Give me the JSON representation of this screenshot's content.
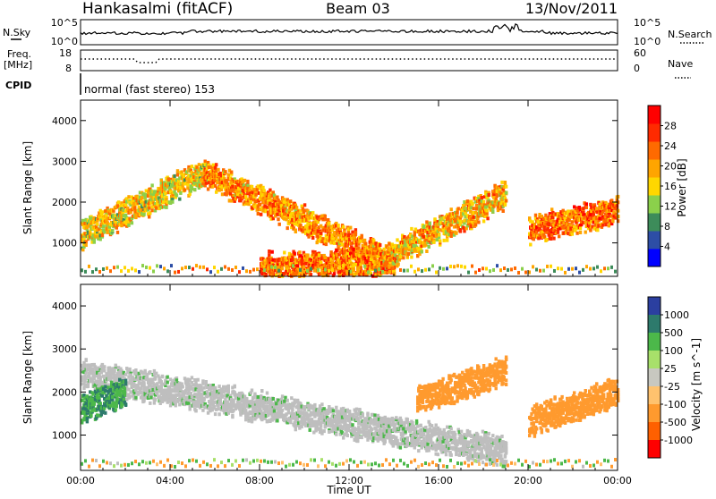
{
  "header": {
    "station": "Hankasalmi (fitACF)",
    "beam": "Beam 03",
    "date": "13/Nov/2011"
  },
  "panels": {
    "noise": {
      "left_label": "N.Sky",
      "right_label": "N.Search",
      "left_ticks": [
        "10^5",
        "10^0"
      ],
      "right_ticks": [
        "10^5",
        "10^0"
      ]
    },
    "freq": {
      "left_label_1": "Freq.",
      "left_label_2": "[MHz]",
      "left_ticks": [
        "18",
        "8"
      ],
      "right_label": "Nave",
      "right_ticks": [
        "60",
        "0"
      ]
    },
    "cpid": {
      "label": "CPID",
      "value": "normal (fast stereo) 153"
    }
  },
  "colors": {
    "power_scale": [
      "#0000ff",
      "#2d4ea6",
      "#3d8c5a",
      "#8bd04b",
      "#ffd700",
      "#ffa500",
      "#ff6a00",
      "#ff2a00",
      "#ff0000"
    ],
    "velocity_scale": [
      "#2b3fa0",
      "#2d7a6c",
      "#4cb84a",
      "#a8e06a",
      "#c8c8c0",
      "#ffc26e",
      "#ff9a2e",
      "#ff6000",
      "#ff0000"
    ],
    "ground_scatter": "#bebebe"
  },
  "chart_data": [
    {
      "type": "heatmap",
      "name": "power",
      "ylabel": "Slant Range [km]",
      "xlabel": "",
      "x_ticks": [
        "00:00",
        "04:00",
        "08:00",
        "12:00",
        "16:00",
        "20:00",
        "00:00"
      ],
      "x_range_hours": [
        0,
        24
      ],
      "y_ticks": [
        1000,
        2000,
        3000,
        4000
      ],
      "y_range_km": [
        180,
        4500
      ],
      "colorbar": {
        "label": "Power [dB]",
        "ticks": [
          4,
          8,
          12,
          16,
          20,
          24,
          28
        ],
        "range": [
          0,
          32
        ]
      },
      "features": [
        {
          "label": "evening echo band",
          "t_start_h": 0.0,
          "t_end_h": 5.5,
          "range_start_km": 1200,
          "range_end_km": 2700,
          "typical_db": 24
        },
        {
          "label": "morning descending echo arc",
          "t_start_h": 5.5,
          "t_end_h": 13.5,
          "range_start_km": 2700,
          "range_end_km": 600,
          "typical_db": 28
        },
        {
          "label": "near-range echo strip",
          "t_start_h": 8.0,
          "t_end_h": 14.0,
          "range_start_km": 400,
          "range_end_km": 500,
          "typical_db": 30
        },
        {
          "label": "afternoon ascending echo arc",
          "t_start_h": 13.5,
          "t_end_h": 19.0,
          "range_start_km": 600,
          "range_end_km": 2200,
          "typical_db": 26
        },
        {
          "label": "late evening echo band",
          "t_start_h": 20.0,
          "t_end_h": 24.0,
          "range_start_km": 1300,
          "range_end_km": 1800,
          "typical_db": 30
        }
      ]
    },
    {
      "type": "heatmap",
      "name": "velocity",
      "ylabel": "Slant Range [km]",
      "xlabel": "Time UT",
      "x_ticks": [
        "00:00",
        "04:00",
        "08:00",
        "12:00",
        "16:00",
        "20:00",
        "00:00"
      ],
      "x_range_hours": [
        0,
        24
      ],
      "y_ticks": [
        1000,
        2000,
        3000,
        4000
      ],
      "y_range_km": [
        180,
        4500
      ],
      "colorbar": {
        "label": "Velocity [m s^-1]",
        "ticks": [
          1000,
          500,
          100,
          25,
          -25,
          -100,
          -500,
          -1000
        ]
      },
      "features": [
        {
          "label": "ground scatter arc",
          "t_start_h": 0.0,
          "t_end_h": 19.0,
          "range_start_km": 2400,
          "range_end_km": 600,
          "typical_velocity": 0
        },
        {
          "label": "positive velocity patch",
          "t_start_h": 0.0,
          "t_end_h": 2.0,
          "range_start_km": 1600,
          "range_end_km": 2000,
          "typical_velocity": 500
        },
        {
          "label": "negative velocity band",
          "t_start_h": 15.0,
          "t_end_h": 19.0,
          "range_start_km": 1800,
          "range_end_km": 2500,
          "typical_velocity": -300
        },
        {
          "label": "late negative velocity patch",
          "t_start_h": 20.0,
          "t_end_h": 24.0,
          "range_start_km": 1300,
          "range_end_km": 2000,
          "typical_velocity": -200
        }
      ]
    }
  ]
}
